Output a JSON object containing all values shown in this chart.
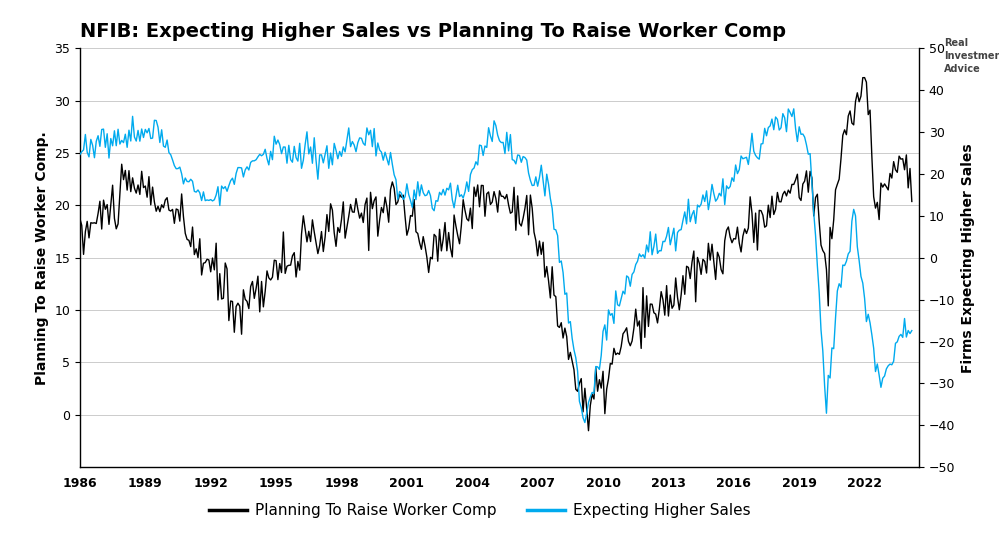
{
  "title": "NFIB: Expecting Higher Sales vs Planning To Raise Worker Comp",
  "ylabel_left": "Planning To Raise Worker Comp.",
  "ylabel_right": "Firms Expecting Higher Sales",
  "ylim_left": [
    -5,
    35
  ],
  "ylim_right": [
    -50,
    50
  ],
  "yticks_left": [
    0,
    5,
    10,
    15,
    20,
    25,
    30,
    35
  ],
  "yticks_right": [
    -50,
    -40,
    -30,
    -20,
    -10,
    0,
    10,
    20,
    30,
    40,
    50
  ],
  "xticks": [
    1986,
    1989,
    1992,
    1995,
    1998,
    2001,
    2004,
    2007,
    2010,
    2013,
    2016,
    2019,
    2022
  ],
  "xlim": [
    1986.0,
    2024.5
  ],
  "line1_color": "#000000",
  "line2_color": "#00aaee",
  "line1_label": "Planning To Raise Worker Comp",
  "line2_label": "Expecting Higher Sales",
  "background_color": "#ffffff",
  "grid_color": "#cccccc",
  "title_fontsize": 14,
  "axis_fontsize": 10,
  "legend_fontsize": 11
}
